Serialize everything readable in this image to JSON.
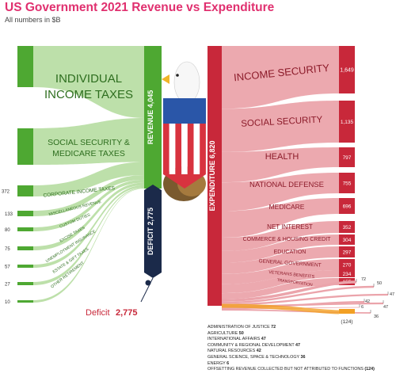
{
  "title": "US Government 2021 Revenue vs Expenditure",
  "subtitle": "All numbers in $B",
  "colors": {
    "green": "#4ea832",
    "green_light": "#b9dea5",
    "red": "#c8283a",
    "red_light": "#eba4ab",
    "navy": "#1b2a4a",
    "orange": "#f2a024"
  },
  "revenue": {
    "label": "REVENUE",
    "total": "4,045",
    "sources": [
      {
        "label": "INDIVIDUAL INCOME TAXES",
        "value": "2,044"
      },
      {
        "label": "SOCIAL SECURITY & MEDICARE TAXES",
        "value": "1,247"
      },
      {
        "label": "CORPORATE INCOME TAXES",
        "value": "372"
      },
      {
        "label": "MISCELLANEOUS REVENUE",
        "value": "133"
      },
      {
        "label": "CUSTOM DUTIES",
        "value": "80"
      },
      {
        "label": "EXCISE TAXES",
        "value": "75"
      },
      {
        "label": "UNEMPLOYMENT INSURANCE",
        "value": "57"
      },
      {
        "label": "ESTATE & GIFT TAXES",
        "value": "27"
      },
      {
        "label": "OTHER RETIREMENT",
        "value": "10"
      }
    ]
  },
  "deficit": {
    "bar_label": "DEFICIT",
    "value": "2,775",
    "caption": "Deficit"
  },
  "expenditure": {
    "label": "EXPENDITURE",
    "total": "6,820",
    "items": [
      {
        "label": "INCOME SECURITY",
        "value": "1,649"
      },
      {
        "label": "SOCIAL SECURITY",
        "value": "1,135"
      },
      {
        "label": "HEALTH",
        "value": "797"
      },
      {
        "label": "NATIONAL DEFENSE",
        "value": "755"
      },
      {
        "label": "MEDICARE",
        "value": "696"
      },
      {
        "label": "NET INTEREST",
        "value": "352"
      },
      {
        "label": "COMMERCE & HOUSING CREDIT",
        "value": "304"
      },
      {
        "label": "EDUCATION",
        "value": "297"
      },
      {
        "label": "GENERAL GOVERNMENT",
        "value": "270"
      },
      {
        "label": "VETERANS BENEFITS",
        "value": "234"
      },
      {
        "label": "TRANSPORTATION",
        "value": "155"
      }
    ],
    "small_values": [
      "72",
      "50",
      "47",
      "47",
      "42",
      "6",
      "36"
    ],
    "offsetting": "(124)"
  },
  "footnotes": [
    {
      "label": "ADMINISTRATION OF JUSTICE",
      "value": "72"
    },
    {
      "label": "AGRICULTURE",
      "value": "50"
    },
    {
      "label": "INTERNATIONAL AFFAIRS",
      "value": "47"
    },
    {
      "label": "COMMUNITY & REGIONAL DEVELOPMENT",
      "value": "47"
    },
    {
      "label": "NATURAL RESOURCES",
      "value": "42"
    },
    {
      "label": "GENERAL SCIENCE, SPACE & TECHNOLOGY",
      "value": "36"
    },
    {
      "label": "ENERGY",
      "value": "6"
    },
    {
      "label": "OFFSETTING REVENUE COLLECTED BUT NOT ATTRIBUTED TO FUNCTIONS",
      "value": "(124)"
    }
  ]
}
